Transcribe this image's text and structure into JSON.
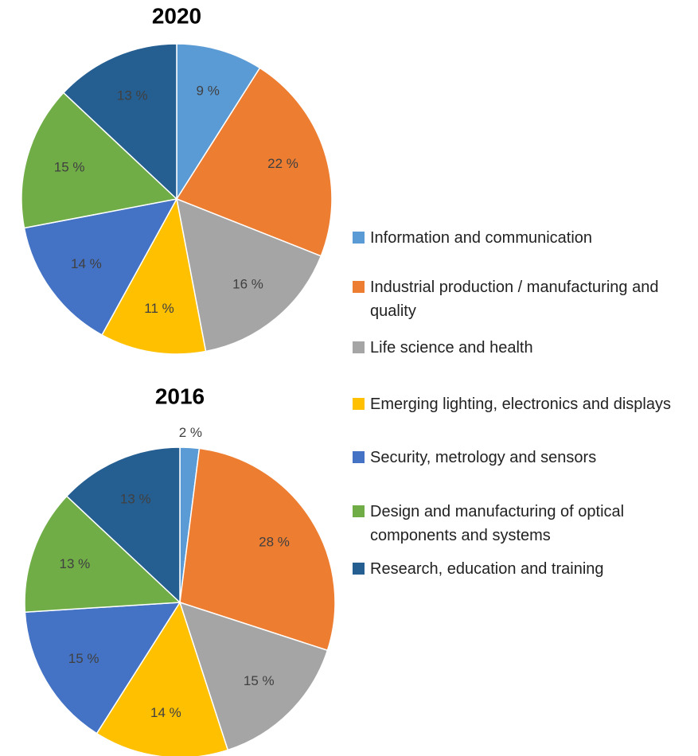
{
  "chart_data": [
    {
      "type": "pie",
      "title": "2020",
      "categories": [
        "Information and communication",
        "Industrial production / manufacturing and quality",
        "Life science and health",
        "Emerging lighting, electronics and displays",
        "Security, metrology and sensors",
        "Design and manufacturing of optical components and systems",
        "Research, education and training"
      ],
      "colors": [
        "#5b9bd5",
        "#ed7d31",
        "#a5a5a5",
        "#ffc000",
        "#4472c4",
        "#70ad47",
        "#255e91"
      ],
      "values": [
        9,
        22,
        16,
        11,
        14,
        15,
        13
      ],
      "value_labels": [
        "9 %",
        "22 %",
        "16 %",
        "11 %",
        "14 %",
        "15 %",
        "13 %"
      ]
    },
    {
      "type": "pie",
      "title": "2016",
      "values": [
        2,
        28,
        15,
        14,
        15,
        13,
        13
      ],
      "value_labels": [
        "2 %",
        "28 %",
        "15 %",
        "14 %",
        "15 %",
        "13 %",
        "13 %"
      ]
    }
  ]
}
